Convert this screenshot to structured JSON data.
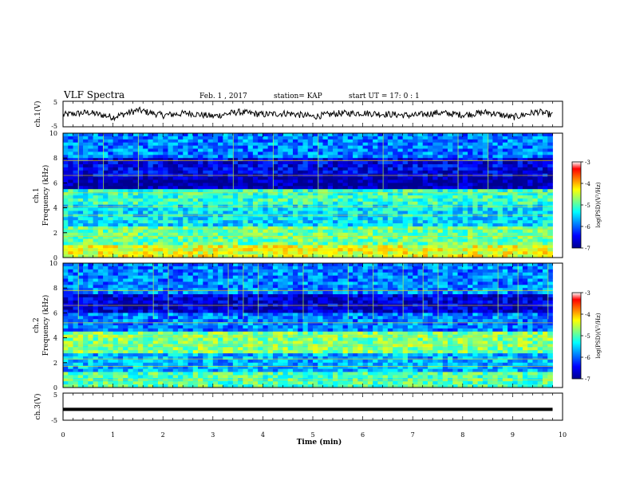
{
  "header": {
    "title": "VLF Spectra",
    "date": "Feb. 1 , 2017",
    "station": "station= KAP",
    "start": "start UT = 17: 0 : 1"
  },
  "chart_data": [
    {
      "type": "line",
      "panel": "ch1-waveform",
      "ylabel": "ch.1(V)",
      "ylim": [
        -5,
        5
      ],
      "yticks": [
        "5",
        "-5"
      ],
      "xlim": [
        0,
        10
      ],
      "note_series": "noisy waveform near 0 V",
      "x": [
        0,
        0.5,
        1,
        1.5,
        2,
        2.5,
        3,
        3.5,
        4,
        4.5,
        5,
        5.5,
        6,
        6.5,
        7,
        7.5,
        8,
        8.5,
        9,
        9.5,
        9.8
      ],
      "y": [
        -0.3,
        0.6,
        -1.2,
        1.5,
        -0.5,
        0.4,
        -0.9,
        0.8,
        -0.2,
        0.3,
        -1.0,
        0.2,
        0.4,
        -0.1,
        -0.6,
        0.5,
        -0.3,
        0.7,
        -1.3,
        0.9,
        -0.4
      ]
    },
    {
      "type": "heatmap",
      "panel": "ch1-spectrogram",
      "ylabel": "ch.1 Frequency (kHz)",
      "ylim": [
        0,
        10
      ],
      "yticks": [
        "0",
        "2",
        "4",
        "6",
        "8",
        "10"
      ],
      "xlim": [
        0,
        10
      ],
      "colorbar": {
        "label": "log(PSD)(V²/Hz)",
        "range": [
          -7,
          -3
        ],
        "ticks": [
          "-3",
          "-4",
          "-5",
          "-6",
          "-7"
        ]
      },
      "bands_khz": [
        {
          "from": 0,
          "to": 1,
          "level": -4.6
        },
        {
          "from": 1,
          "to": 2.4,
          "level": -5.1
        },
        {
          "from": 2.4,
          "to": 4.2,
          "level": -5.6
        },
        {
          "from": 4.2,
          "to": 5.4,
          "level": -5.3
        },
        {
          "from": 5.4,
          "to": 6.4,
          "level": -6.9
        },
        {
          "from": 6.4,
          "to": 8,
          "level": -6.6
        },
        {
          "from": 8,
          "to": 10,
          "level": -6.0
        }
      ]
    },
    {
      "type": "heatmap",
      "panel": "ch2-spectrogram",
      "ylabel": "ch.2 Frequency (kHz)",
      "ylim": [
        0,
        10
      ],
      "yticks": [
        "0",
        "2",
        "4",
        "6",
        "8",
        "10"
      ],
      "xlim": [
        0,
        10
      ],
      "colorbar": {
        "label": "log(PSD)(V²/Hz)",
        "range": [
          -7,
          -3
        ],
        "ticks": [
          "-3",
          "-4",
          "-5",
          "-6",
          "-7"
        ]
      },
      "bands_khz": [
        {
          "from": 0,
          "to": 1.2,
          "level": -5.2
        },
        {
          "from": 1.2,
          "to": 2.8,
          "level": -5.8
        },
        {
          "from": 2.8,
          "to": 4.6,
          "level": -5.0
        },
        {
          "from": 4.6,
          "to": 6,
          "level": -6.0
        },
        {
          "from": 6,
          "to": 7.6,
          "level": -6.7
        },
        {
          "from": 7.6,
          "to": 10,
          "level": -6.0
        }
      ]
    },
    {
      "type": "line",
      "panel": "ch3-waveform",
      "ylabel": "ch.3(V)",
      "ylim": [
        -5,
        5
      ],
      "yticks": [
        "5",
        "-5"
      ],
      "xlim": [
        0,
        10
      ],
      "x": [
        0,
        9.8
      ],
      "y": [
        -1.0,
        -1.0
      ]
    }
  ],
  "xaxis": {
    "label": "Time (min)",
    "ticks": [
      "0",
      "1",
      "2",
      "3",
      "4",
      "5",
      "6",
      "7",
      "8",
      "9",
      "10"
    ]
  },
  "colors": {
    "cmap": [
      "#00008f",
      "#0000ff",
      "#0080ff",
      "#00ffff",
      "#80ff80",
      "#ffff00",
      "#ff8000",
      "#ff0000",
      "#ffffff"
    ]
  }
}
